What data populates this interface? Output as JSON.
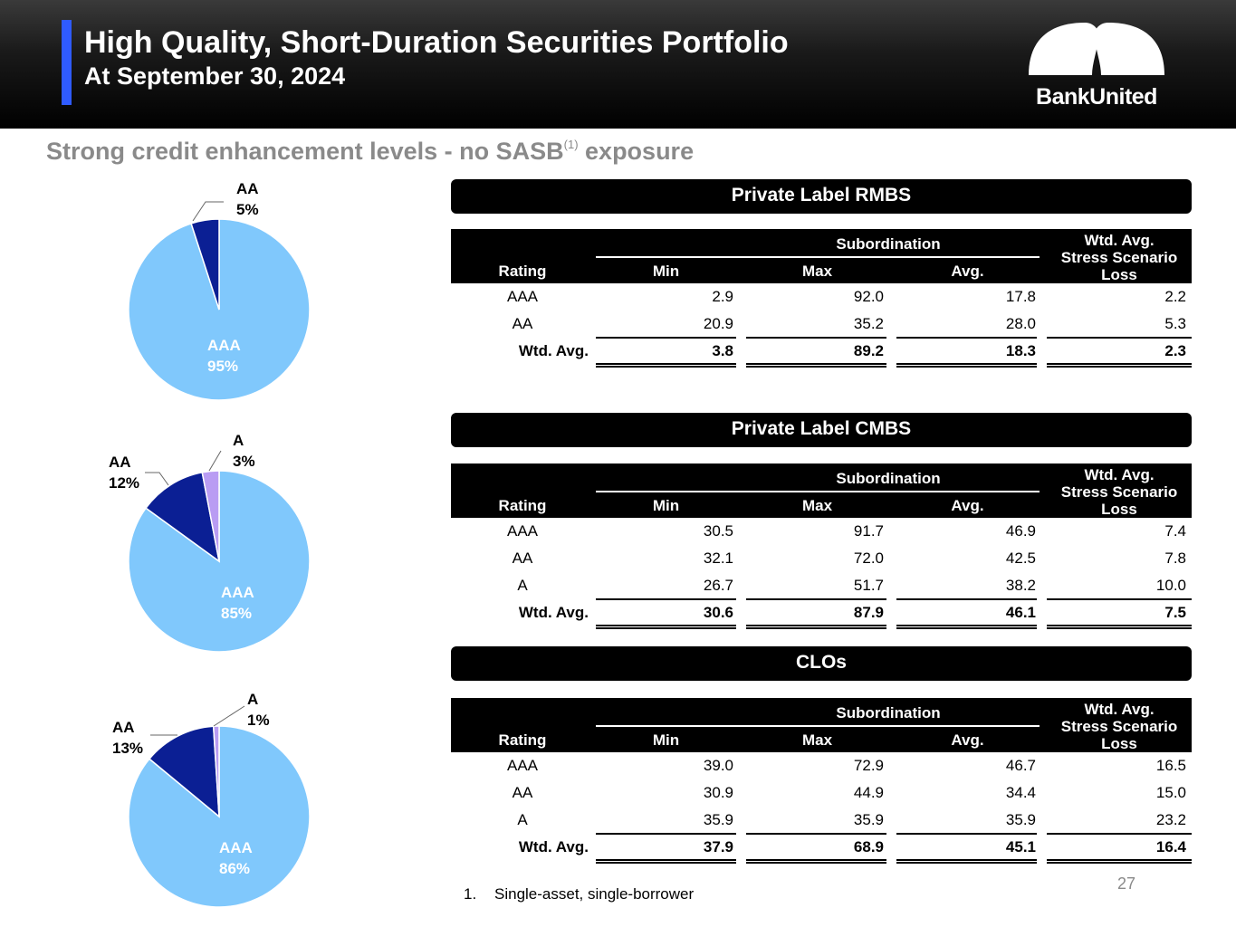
{
  "header": {
    "title": "High Quality, Short-Duration Securities Portfolio",
    "subtitle": "At September 30, 2024",
    "logo_text": "BankUnited"
  },
  "tagline": {
    "text_before": "Strong credit enhancement levels - no SASB",
    "superscript": "(1)",
    "text_after": " exposure"
  },
  "colors": {
    "aaa": "#80c8fc",
    "aa": "#0b1f94",
    "a": "#b99cf3",
    "accent": "#2f5bff"
  },
  "pies": [
    {
      "slices": [
        {
          "label": "AAA",
          "pct": "95%",
          "value": 95
        },
        {
          "label": "AA",
          "pct": "5%",
          "value": 5
        }
      ]
    },
    {
      "slices": [
        {
          "label": "AAA",
          "pct": "85%",
          "value": 85
        },
        {
          "label": "AA",
          "pct": "12%",
          "value": 12
        },
        {
          "label": "A",
          "pct": "3%",
          "value": 3
        }
      ]
    },
    {
      "slices": [
        {
          "label": "AAA",
          "pct": "86%",
          "value": 86
        },
        {
          "label": "AA",
          "pct": "13%",
          "value": 13
        },
        {
          "label": "A",
          "pct": "1%",
          "value": 1
        }
      ]
    }
  ],
  "table_headers": {
    "subordination": "Subordination",
    "rating": "Rating",
    "min": "Min",
    "max": "Max",
    "avg": "Avg.",
    "loss_l1": "Wtd. Avg.",
    "loss_l2": "Stress Scenario",
    "loss_l3": "Loss"
  },
  "tables": [
    {
      "title": "Private Label RMBS",
      "rows": [
        {
          "rating": "AAA",
          "min": "2.9",
          "max": "92.0",
          "avg": "17.8",
          "loss": "2.2"
        },
        {
          "rating": "AA",
          "min": "20.9",
          "max": "35.2",
          "avg": "28.0",
          "loss": "5.3"
        }
      ],
      "total": {
        "rating": "Wtd. Avg.",
        "min": "3.8",
        "max": "89.2",
        "avg": "18.3",
        "loss": "2.3"
      }
    },
    {
      "title": "Private Label CMBS",
      "rows": [
        {
          "rating": "AAA",
          "min": "30.5",
          "max": "91.7",
          "avg": "46.9",
          "loss": "7.4"
        },
        {
          "rating": "AA",
          "min": "32.1",
          "max": "72.0",
          "avg": "42.5",
          "loss": "7.8"
        },
        {
          "rating": "A",
          "min": "26.7",
          "max": "51.7",
          "avg": "38.2",
          "loss": "10.0"
        }
      ],
      "total": {
        "rating": "Wtd. Avg.",
        "min": "30.6",
        "max": "87.9",
        "avg": "46.1",
        "loss": "7.5"
      }
    },
    {
      "title": "CLOs",
      "rows": [
        {
          "rating": "AAA",
          "min": "39.0",
          "max": "72.9",
          "avg": "46.7",
          "loss": "16.5"
        },
        {
          "rating": "AA",
          "min": "30.9",
          "max": "44.9",
          "avg": "34.4",
          "loss": "15.0"
        },
        {
          "rating": "A",
          "min": "35.9",
          "max": "35.9",
          "avg": "35.9",
          "loss": "23.2"
        }
      ],
      "total": {
        "rating": "Wtd. Avg.",
        "min": "37.9",
        "max": "68.9",
        "avg": "45.1",
        "loss": "16.4"
      }
    }
  ],
  "footnote": {
    "number": "1.",
    "text": "Single-asset, single-borrower"
  },
  "page_number": "27"
}
